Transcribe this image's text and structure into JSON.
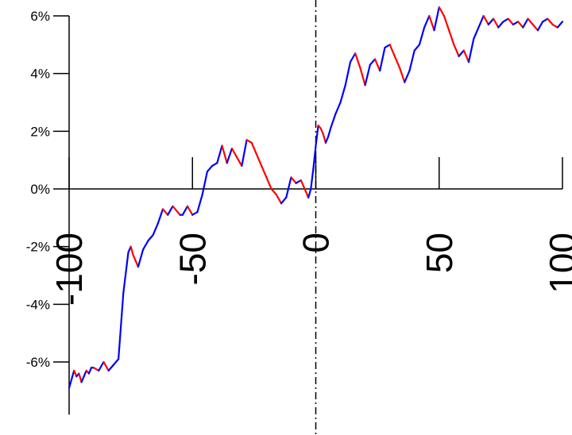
{
  "chart_data": {
    "type": "line",
    "title": "",
    "xlabel": "",
    "ylabel": "",
    "xlim": [
      -100,
      100
    ],
    "ylim": [
      -7,
      6
    ],
    "x_ticks": [
      -100,
      -50,
      0,
      50,
      100
    ],
    "x_tick_labels": [
      "-100",
      "-50",
      "0",
      "50",
      "100"
    ],
    "y_ticks": [
      6,
      4,
      2,
      0,
      -2,
      -4,
      -6
    ],
    "y_tick_labels": [
      "6%",
      "4%",
      "2%",
      "0%",
      "-2%",
      "-4%",
      "-6%"
    ],
    "grid": false,
    "reference_line": {
      "x": 0,
      "style": "dash-dot"
    },
    "colors": {
      "rising": "#0000ff",
      "falling": "#ff0000",
      "axis": "#000000"
    },
    "series": [
      {
        "x": [
          -100,
          -99,
          -98,
          -97,
          -96,
          -95,
          -94,
          -93,
          -92,
          -91,
          -90,
          -88,
          -86,
          -84,
          -82,
          -80,
          -78,
          -76,
          -75,
          -74,
          -73,
          -72,
          -71,
          -70,
          -68,
          -66,
          -64,
          -62,
          -60,
          -58,
          -56,
          -55,
          -54,
          -52,
          -50,
          -48,
          -46,
          -44,
          -42,
          -40,
          -38,
          -36,
          -34,
          -32,
          -30,
          -28,
          -26,
          -24,
          -22,
          -20,
          -18,
          -16,
          -14,
          -12,
          -10,
          -8,
          -6,
          -4,
          -3,
          -2,
          -1,
          0,
          1,
          2,
          3,
          4,
          5,
          6,
          8,
          10,
          12,
          14,
          16,
          18,
          20,
          22,
          24,
          26,
          28,
          30,
          32,
          34,
          36,
          38,
          40,
          42,
          44,
          46,
          48,
          50,
          52,
          54,
          56,
          58,
          60,
          62,
          64,
          66,
          68,
          70,
          72,
          74,
          76,
          78,
          80,
          82,
          84,
          86,
          88,
          90,
          92,
          94,
          96,
          98,
          100
        ],
        "y": [
          -6.9,
          -6.6,
          -6.3,
          -6.5,
          -6.4,
          -6.7,
          -6.5,
          -6.3,
          -6.4,
          -6.2,
          -6.2,
          -6.3,
          -6.0,
          -6.3,
          -6.1,
          -5.9,
          -3.6,
          -2.2,
          -2.0,
          -2.3,
          -2.5,
          -2.7,
          -2.4,
          -2.1,
          -1.8,
          -1.6,
          -1.2,
          -0.7,
          -0.9,
          -0.6,
          -0.8,
          -0.9,
          -0.9,
          -0.6,
          -0.9,
          -0.8,
          -0.2,
          0.6,
          0.8,
          0.9,
          1.5,
          0.9,
          1.4,
          1.1,
          0.8,
          1.7,
          1.6,
          1.2,
          0.8,
          0.4,
          0.0,
          -0.2,
          -0.5,
          -0.3,
          0.4,
          0.2,
          0.3,
          -0.1,
          -0.3,
          0.0,
          0.7,
          1.5,
          2.2,
          2.1,
          1.9,
          1.6,
          1.8,
          2.1,
          2.6,
          3.0,
          3.6,
          4.4,
          4.7,
          4.2,
          3.6,
          4.3,
          4.5,
          4.1,
          4.9,
          5.0,
          4.6,
          4.2,
          3.7,
          4.1,
          4.8,
          5.0,
          5.6,
          6.0,
          5.5,
          6.3,
          6.0,
          5.5,
          5.0,
          4.6,
          4.8,
          4.4,
          5.2,
          5.6,
          6.0,
          5.7,
          5.9,
          5.6,
          5.8,
          5.9,
          5.7,
          5.8,
          5.6,
          5.9,
          5.7,
          5.5,
          5.8,
          5.9,
          5.7,
          5.6,
          5.8
        ]
      }
    ]
  }
}
